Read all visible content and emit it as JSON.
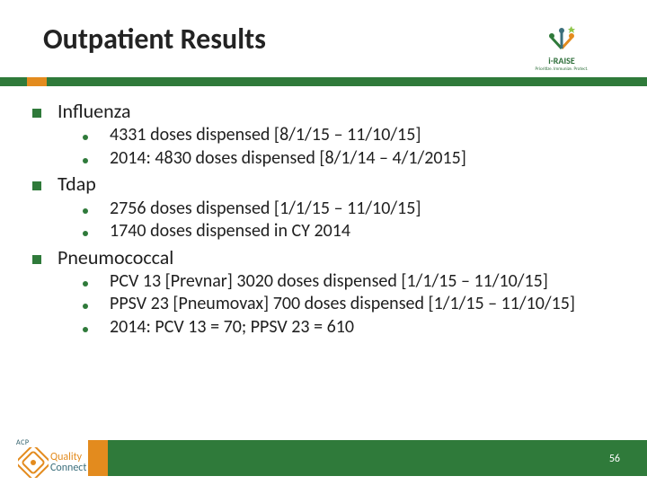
{
  "title": "Outpatient Results",
  "colors": {
    "title_text": "#232323",
    "bar_green": "#2f7a3a",
    "bar_orange": "#e38b1e",
    "bullet_square": "#2f7a3a",
    "bullet_dot": "#2f7a3a",
    "body_text": "#1f1f1f",
    "footer_green": "#2f7a3a",
    "footer_orange": "#e38b1e",
    "page_number": "#ffffff",
    "background": "#ffffff"
  },
  "typography": {
    "title_fontsize": 32,
    "lvl1_fontsize": 22,
    "lvl2_fontsize": 20,
    "page_number_fontsize": 12
  },
  "bullets": [
    {
      "label": "Influenza",
      "sub": [
        "4331 doses dispensed [8/1/15 – 11/10/15]",
        "2014: 4830 doses dispensed [8/1/14 – 4/1/2015]"
      ]
    },
    {
      "label": "Tdap",
      "sub": [
        "2756 doses dispensed [1/1/15 – 11/10/15]",
        "1740 doses dispensed in CY 2014"
      ]
    },
    {
      "label": "Pneumococcal",
      "sub": [
        "PCV 13 [Prevnar] 3020 doses dispensed [1/1/15 – 11/10/15]",
        "PPSV 23 [Pneumovax] 700 doses dispensed [1/1/15 – 11/10/15]",
        "2014: PCV 13 = 70; PPSV 23 = 610"
      ]
    }
  ],
  "page_number": "56",
  "logo_raise": {
    "text": "i-RAISE",
    "subtext": "Prioritize. Immunize. Protect."
  },
  "logo_qc": {
    "line1": "Quality",
    "line2": "Connect",
    "acp": "ACP"
  }
}
